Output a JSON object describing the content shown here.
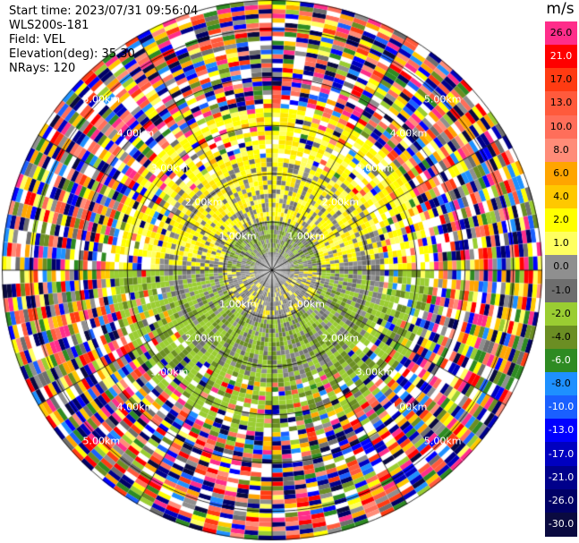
{
  "info": {
    "start_time": "Start time: 2023/07/31 09:56:04",
    "radar": "WLS200s-181",
    "field": "Field: VEL",
    "elevation": "Elevation(deg): 35.30",
    "nrays": "NRays: 120"
  },
  "colorbar": {
    "unit": "m/s",
    "levels": [
      {
        "label": "26.0",
        "color": "#ff2d8a",
        "text": "#000000"
      },
      {
        "label": "21.0",
        "color": "#ff0000",
        "text": "#ffffff"
      },
      {
        "label": "17.0",
        "color": "#ff3b12",
        "text": "#000000"
      },
      {
        "label": "13.0",
        "color": "#ff5a3c",
        "text": "#000000"
      },
      {
        "label": "10.0",
        "color": "#ff6e5a",
        "text": "#000000"
      },
      {
        "label": "8.0",
        "color": "#ff8c78",
        "text": "#000000"
      },
      {
        "label": "6.0",
        "color": "#ffa500",
        "text": "#000000"
      },
      {
        "label": "4.0",
        "color": "#ffc800",
        "text": "#000000"
      },
      {
        "label": "2.0",
        "color": "#ffff00",
        "text": "#000000"
      },
      {
        "label": "1.0",
        "color": "#ffff60",
        "text": "#000000"
      },
      {
        "label": "0.0",
        "color": "#8f8f8f",
        "text": "#000000"
      },
      {
        "label": "-1.0",
        "color": "#6e6e6e",
        "text": "#000000"
      },
      {
        "label": "-2.0",
        "color": "#9acd32",
        "text": "#000000"
      },
      {
        "label": "-4.0",
        "color": "#6b8e23",
        "text": "#000000"
      },
      {
        "label": "-6.0",
        "color": "#2e8b22",
        "text": "#ffffff"
      },
      {
        "label": "-8.0",
        "color": "#1e90ff",
        "text": "#000000"
      },
      {
        "label": "-10.0",
        "color": "#1a60ff",
        "text": "#ffffff"
      },
      {
        "label": "-13.0",
        "color": "#0000ff",
        "text": "#ffffff"
      },
      {
        "label": "-17.0",
        "color": "#0000c0",
        "text": "#ffffff"
      },
      {
        "label": "-21.0",
        "color": "#00008b",
        "text": "#ffffff"
      },
      {
        "label": "-26.0",
        "color": "#000066",
        "text": "#ffffff"
      },
      {
        "label": "-30.0",
        "color": "#0a0a40",
        "text": "#ffffff"
      }
    ]
  },
  "ring_labels": [
    "1.00km",
    "2.00km",
    "3.00km",
    "4.00km",
    "5.00km"
  ],
  "colors": {
    "grid": "#000000",
    "background": "#ffffff"
  }
}
